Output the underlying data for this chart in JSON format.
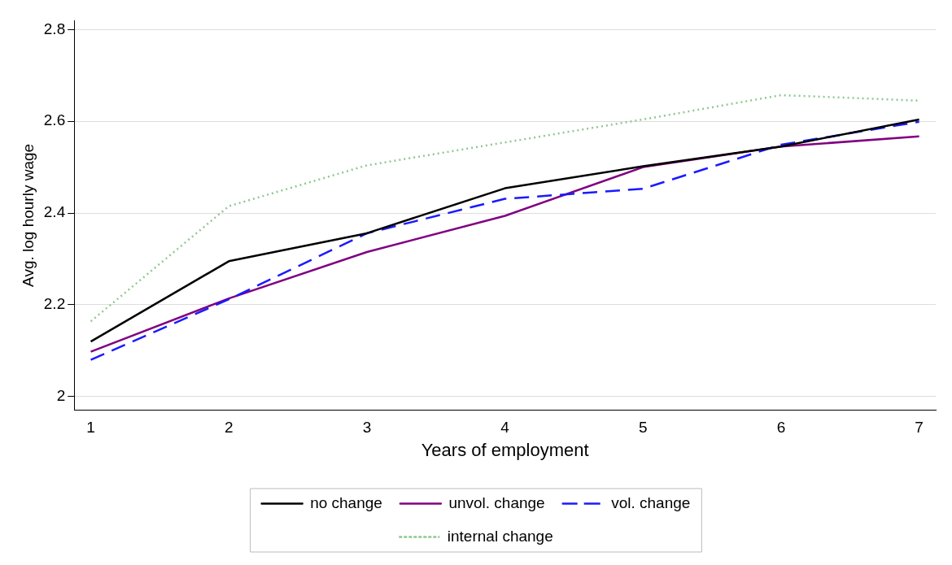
{
  "chart_data": {
    "type": "line",
    "xlabel": "Years of employment",
    "ylabel": "Avg. log hourly wage",
    "x": [
      1,
      2,
      3,
      4,
      5,
      6,
      7
    ],
    "series": [
      {
        "name": "no change",
        "color": "#000000",
        "line_style": "solid",
        "values": [
          2.12,
          2.295,
          2.356,
          2.454,
          2.502,
          2.545,
          2.604
        ]
      },
      {
        "name": "vol. change",
        "color": "#1a1aff",
        "line_style": "dashed",
        "values": [
          2.08,
          2.212,
          2.356,
          2.431,
          2.453,
          2.549,
          2.599
        ]
      },
      {
        "name": "unvol. change",
        "color": "#800080",
        "line_style": "solid",
        "values": [
          2.098,
          2.214,
          2.315,
          2.394,
          2.5,
          2.545,
          2.567
        ]
      },
      {
        "name": "internal change",
        "color": "#90c890",
        "line_style": "dotted",
        "values": [
          2.164,
          2.415,
          2.504,
          2.554,
          2.604,
          2.657,
          2.645
        ]
      }
    ],
    "xlim": [
      0.88,
      7.12
    ],
    "xticks": [
      1,
      2,
      3,
      4,
      5,
      6,
      7
    ],
    "ylim": [
      1.97,
      2.82
    ],
    "yticks": [
      2,
      2.2,
      2.4,
      2.6,
      2.8
    ],
    "grid": "y",
    "legend": "bottom",
    "marker": "none"
  }
}
